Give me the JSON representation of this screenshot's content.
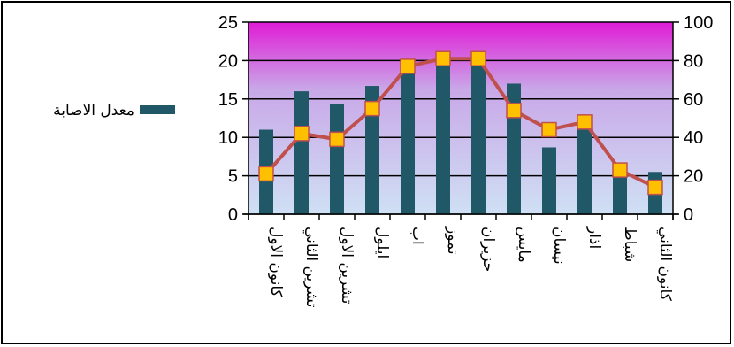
{
  "chart_data": {
    "type": "bar+line",
    "categories": [
      "كانون الاول",
      "تشرين الثاني",
      "تشرين الاول",
      "ايلول",
      "اب",
      "تموز",
      "حزيران",
      "مايس",
      "نيسان",
      "اذار",
      "شباط",
      "كانون الثاني"
    ],
    "series": [
      {
        "name": "معدل الاصابة",
        "type": "bar",
        "axis": "left",
        "color": "#215868",
        "values": [
          11,
          16,
          14.4,
          16.7,
          18.4,
          19.7,
          21,
          17,
          8.7,
          11.7,
          5.7,
          5.5
        ]
      },
      {
        "type": "line",
        "axis": "right",
        "color": "#c0504d",
        "marker_color": "#ffc000",
        "values": [
          21,
          42,
          39,
          55,
          77,
          81,
          81,
          54,
          44,
          48,
          23,
          14
        ]
      }
    ],
    "y_left": {
      "min": 0,
      "max": 25,
      "ticks": [
        0,
        5,
        10,
        15,
        20,
        25
      ]
    },
    "y_right": {
      "min": 0,
      "max": 100,
      "ticks": [
        0,
        20,
        40,
        60,
        80,
        100
      ]
    },
    "legend_position": "left",
    "grid": true,
    "background_gradient": [
      "#e01cd6",
      "#cfe0f4"
    ]
  }
}
